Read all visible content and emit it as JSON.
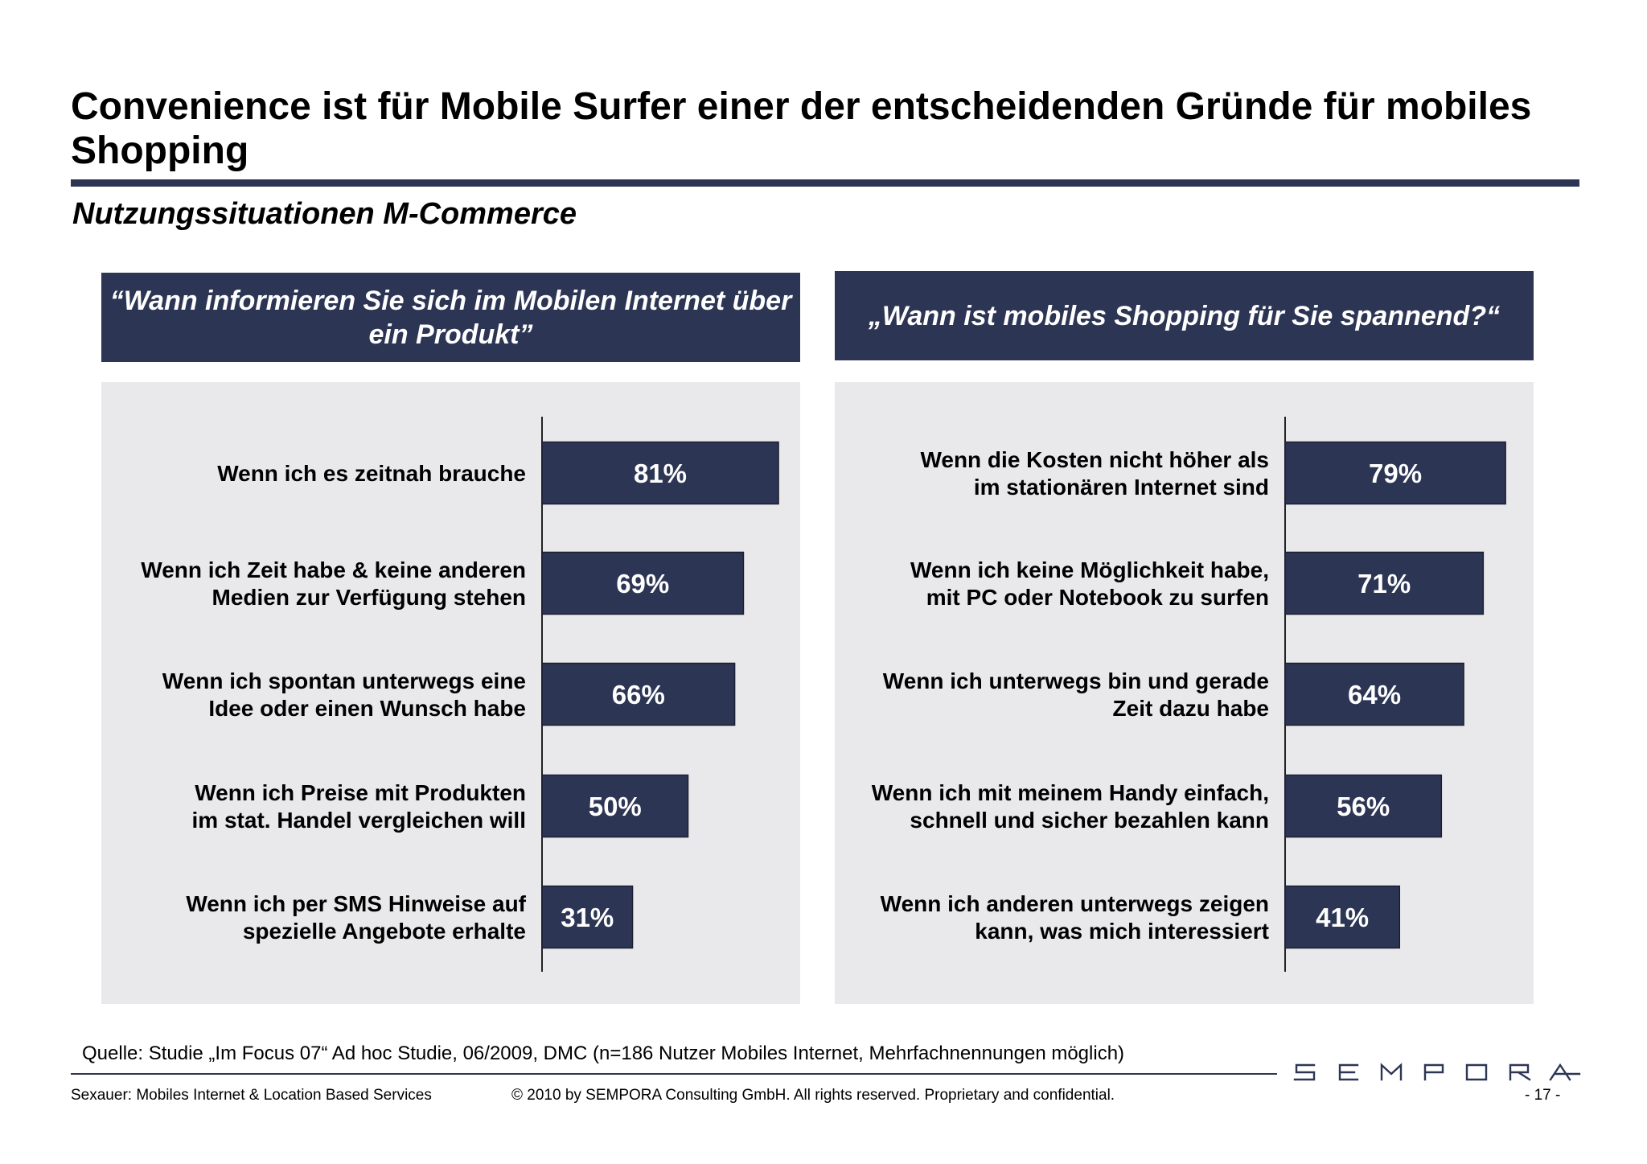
{
  "page": {
    "title": "Convenience ist für Mobile Surfer einer der entscheidenden Gründe für mobiles Shopping",
    "subtitle": "Nutzungssituationen M-Commerce",
    "source": "Quelle: Studie „Im Focus 07“ Ad hoc Studie, 06/2009, DMC (n=186 Nutzer Mobiles Internet, Mehrfachnennungen möglich)",
    "footer_left": "Sexauer: Mobiles Internet & Location Based Services",
    "footer_center": "© 2010 by SEMPORA Consulting GmbH. All rights reserved. Proprietary and confidential.",
    "page_number": "- 17 -",
    "logo_text": "SEMPORA"
  },
  "colors": {
    "accent": "#2d3554",
    "panel_bg": "#e9e8ea",
    "bar_fill": "#2d3554",
    "bar_label": "#ffffff"
  },
  "chart_data": [
    {
      "type": "bar",
      "orientation": "horizontal",
      "title": "“Wann informieren Sie sich im Mobilen Internet über ein Produkt”",
      "categories": [
        "Wenn ich es zeitnah brauche",
        "Wenn ich Zeit habe & keine anderen Medien zur Verfügung stehen",
        "Wenn ich spontan unterwegs eine Idee oder einen Wunsch habe",
        "Wenn ich Preise mit Produkten im stat. Handel vergleichen will",
        "Wenn ich per SMS Hinweise auf spezielle Angebote erhalte"
      ],
      "category_lines": [
        [
          "Wenn ich es zeitnah brauche"
        ],
        [
          "Wenn ich Zeit habe & keine anderen",
          "Medien zur Verfügung stehen"
        ],
        [
          "Wenn ich spontan unterwegs eine",
          "Idee oder einen Wunsch habe"
        ],
        [
          "Wenn ich Preise mit Produkten",
          "im stat. Handel vergleichen will"
        ],
        [
          "Wenn ich per SMS Hinweise auf",
          "spezielle Angebote erhalte"
        ]
      ],
      "values": [
        81,
        69,
        66,
        50,
        31
      ],
      "value_labels": [
        "81%",
        "69%",
        "66%",
        "50%",
        "31%"
      ],
      "xlim": [
        0,
        100
      ]
    },
    {
      "type": "bar",
      "orientation": "horizontal",
      "title": "„Wann ist mobiles Shopping für Sie spannend?“",
      "categories": [
        "Wenn die Kosten nicht höher als im stationären Internet sind",
        "Wenn ich keine Möglichkeit habe, mit PC oder Notebook zu surfen",
        "Wenn ich unterwegs bin und gerade Zeit dazu habe",
        "Wenn ich mit meinem Handy einfach, schnell und sicher bezahlen kann",
        "Wenn ich anderen unterwegs zeigen kann, was mich interessiert"
      ],
      "category_lines": [
        [
          "Wenn die Kosten nicht höher als",
          "im stationären Internet sind"
        ],
        [
          "Wenn ich keine Möglichkeit habe,",
          "mit PC oder Notebook zu surfen"
        ],
        [
          "Wenn ich unterwegs bin und gerade",
          "Zeit dazu habe"
        ],
        [
          "Wenn ich mit meinem Handy einfach,",
          "schnell und sicher bezahlen kann"
        ],
        [
          "Wenn ich anderen unterwegs zeigen",
          "kann, was mich interessiert"
        ]
      ],
      "values": [
        79,
        71,
        64,
        56,
        41
      ],
      "value_labels": [
        "79%",
        "71%",
        "64%",
        "56%",
        "41%"
      ],
      "xlim": [
        0,
        100
      ]
    }
  ]
}
